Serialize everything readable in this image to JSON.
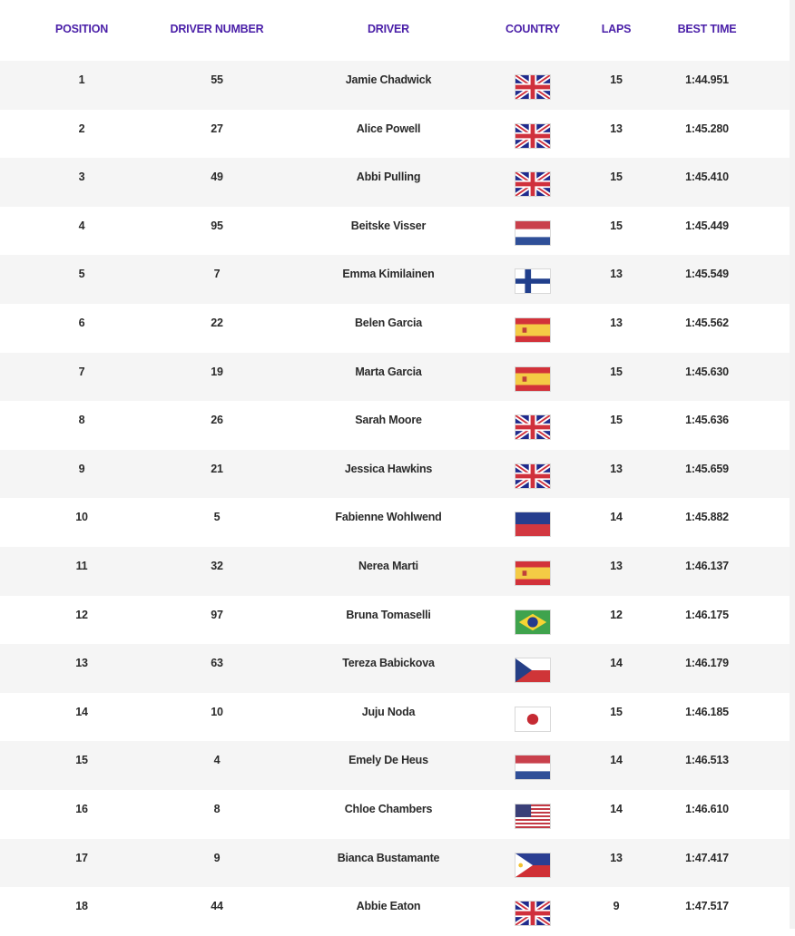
{
  "headers": {
    "position": "POSITION",
    "driver_number": "DRIVER NUMBER",
    "driver": "DRIVER",
    "country": "COUNTRY",
    "laps": "LAPS",
    "best_time": "BEST TIME"
  },
  "header_color": "#4a1fa8",
  "rows": [
    {
      "position": "1",
      "number": "55",
      "driver": "Jamie Chadwick",
      "country": "GB",
      "laps": "15",
      "time": "1:44.951"
    },
    {
      "position": "2",
      "number": "27",
      "driver": "Alice Powell",
      "country": "GB",
      "laps": "13",
      "time": "1:45.280"
    },
    {
      "position": "3",
      "number": "49",
      "driver": "Abbi Pulling",
      "country": "GB",
      "laps": "15",
      "time": "1:45.410"
    },
    {
      "position": "4",
      "number": "95",
      "driver": "Beitske Visser",
      "country": "NL",
      "laps": "15",
      "time": "1:45.449"
    },
    {
      "position": "5",
      "number": "7",
      "driver": "Emma Kimilainen",
      "country": "FI",
      "laps": "13",
      "time": "1:45.549"
    },
    {
      "position": "6",
      "number": "22",
      "driver": "Belen Garcia",
      "country": "ES",
      "laps": "13",
      "time": "1:45.562"
    },
    {
      "position": "7",
      "number": "19",
      "driver": "Marta Garcia",
      "country": "ES",
      "laps": "15",
      "time": "1:45.630"
    },
    {
      "position": "8",
      "number": "26",
      "driver": "Sarah Moore",
      "country": "GB",
      "laps": "15",
      "time": "1:45.636"
    },
    {
      "position": "9",
      "number": "21",
      "driver": "Jessica Hawkins",
      "country": "GB",
      "laps": "13",
      "time": "1:45.659"
    },
    {
      "position": "10",
      "number": "5",
      "driver": "Fabienne Wohlwend",
      "country": "LI",
      "laps": "14",
      "time": "1:45.882"
    },
    {
      "position": "11",
      "number": "32",
      "driver": "Nerea Marti",
      "country": "ES",
      "laps": "13",
      "time": "1:46.137"
    },
    {
      "position": "12",
      "number": "97",
      "driver": "Bruna Tomaselli",
      "country": "BR",
      "laps": "12",
      "time": "1:46.175"
    },
    {
      "position": "13",
      "number": "63",
      "driver": "Tereza Babickova",
      "country": "CZ",
      "laps": "14",
      "time": "1:46.179"
    },
    {
      "position": "14",
      "number": "10",
      "driver": "Juju Noda",
      "country": "JP",
      "laps": "15",
      "time": "1:46.185"
    },
    {
      "position": "15",
      "number": "4",
      "driver": "Emely De Heus",
      "country": "NL",
      "laps": "14",
      "time": "1:46.513"
    },
    {
      "position": "16",
      "number": "8",
      "driver": "Chloe Chambers",
      "country": "US",
      "laps": "14",
      "time": "1:46.610"
    },
    {
      "position": "17",
      "number": "9",
      "driver": "Bianca Bustamante",
      "country": "PH",
      "laps": "13",
      "time": "1:47.417"
    },
    {
      "position": "18",
      "number": "44",
      "driver": "Abbie Eaton",
      "country": "GB",
      "laps": "9",
      "time": "1:47.517"
    }
  ]
}
